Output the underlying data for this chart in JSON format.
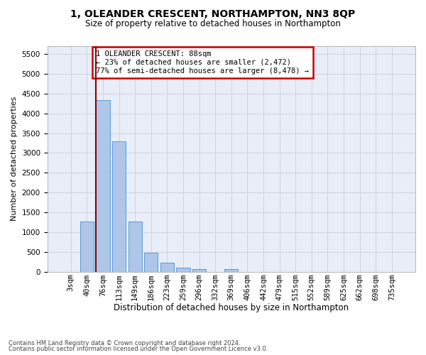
{
  "title": "1, OLEANDER CRESCENT, NORTHAMPTON, NN3 8QP",
  "subtitle": "Size of property relative to detached houses in Northampton",
  "xlabel": "Distribution of detached houses by size in Northampton",
  "ylabel": "Number of detached properties",
  "footnote1": "Contains HM Land Registry data © Crown copyright and database right 2024.",
  "footnote2": "Contains public sector information licensed under the Open Government Licence v3.0.",
  "annotation_line1": "1 OLEANDER CRESCENT: 88sqm",
  "annotation_line2": "← 23% of detached houses are smaller (2,472)",
  "annotation_line3": "77% of semi-detached houses are larger (8,478) →",
  "bar_color": "#aec6e8",
  "bar_edge_color": "#5b9bd5",
  "vline_color": "#8b0000",
  "vline_x_idx": 2,
  "categories": [
    "3sqm",
    "40sqm",
    "76sqm",
    "113sqm",
    "149sqm",
    "186sqm",
    "223sqm",
    "259sqm",
    "296sqm",
    "332sqm",
    "369sqm",
    "406sqm",
    "442sqm",
    "479sqm",
    "515sqm",
    "552sqm",
    "589sqm",
    "625sqm",
    "662sqm",
    "698sqm",
    "735sqm"
  ],
  "values": [
    0,
    1270,
    4340,
    3290,
    1270,
    470,
    220,
    95,
    60,
    0,
    60,
    0,
    0,
    0,
    0,
    0,
    0,
    0,
    0,
    0,
    0
  ],
  "ylim": [
    0,
    5700
  ],
  "yticks": [
    0,
    500,
    1000,
    1500,
    2000,
    2500,
    3000,
    3500,
    4000,
    4500,
    5000,
    5500
  ],
  "grid_color": "#ccd5e3",
  "bg_color": "#e8edf7",
  "title_fontsize": 10,
  "subtitle_fontsize": 8.5,
  "ylabel_fontsize": 8,
  "xlabel_fontsize": 8.5,
  "tick_fontsize": 7.5,
  "annot_fontsize": 7.5,
  "footnote_fontsize": 6
}
